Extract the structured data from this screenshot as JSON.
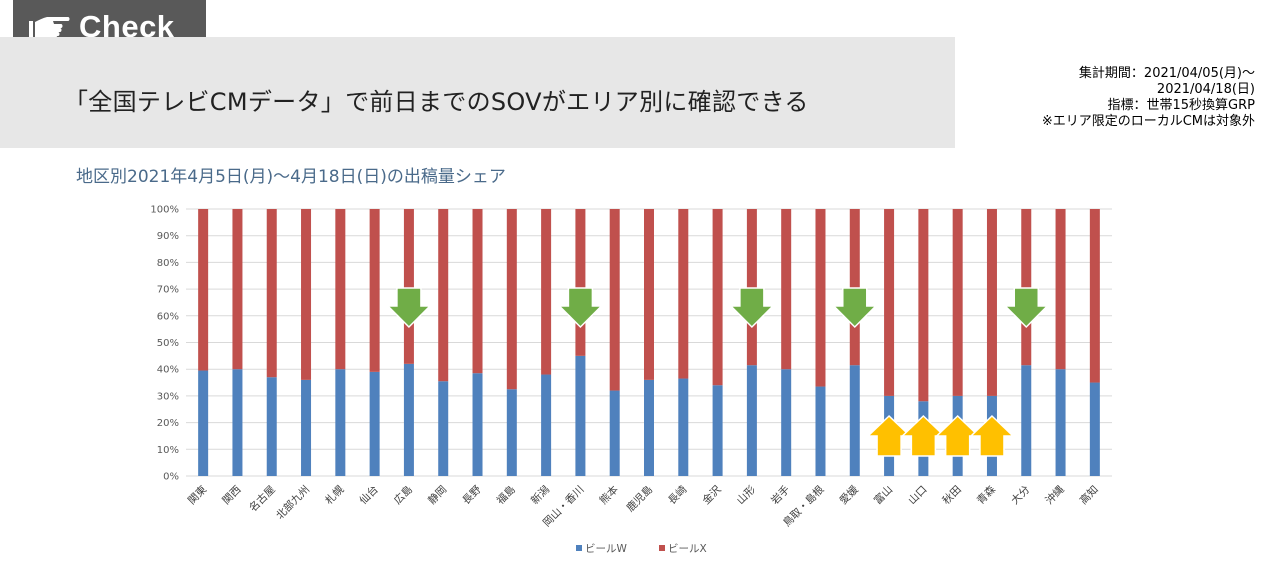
{
  "banner": {
    "label": "Check",
    "icon": "pointing-hand-icon"
  },
  "headline": "「全国テレビCMデータ」で前日までのSOVがエリア別に確認できる",
  "meta": [
    "集計期間：2021/04/05(月)～",
    "2021/04/18(日)",
    "指標：世帯15秒換算GRP",
    "※エリア限定のローカルCMは対象外"
  ],
  "colors": {
    "series_w": "#4f81bd",
    "series_x": "#c0504d",
    "down_arrow": "#70ad47",
    "up_arrow": "#ffc000",
    "grid": "#d9d9d9"
  },
  "chart_data": {
    "type": "bar",
    "stacked": true,
    "title": "地区別2021年4月5日(月)～4月18日(日)の出稿量シェア",
    "categories": [
      "関東",
      "関西",
      "名古屋",
      "北部九州",
      "札幌",
      "仙台",
      "広島",
      "静岡",
      "長野",
      "福島",
      "新潟",
      "岡山・香川",
      "熊本",
      "鹿児島",
      "長崎",
      "金沢",
      "山形",
      "岩手",
      "鳥取・島根",
      "愛媛",
      "富山",
      "山口",
      "秋田",
      "青森",
      "大分",
      "沖縄",
      "高知"
    ],
    "series": [
      {
        "name": "ビールW",
        "values": [
          39.5,
          40,
          37,
          36,
          40,
          39,
          42,
          35.5,
          38.5,
          32.5,
          38,
          45,
          32,
          36,
          36.5,
          34,
          41.5,
          40,
          33.5,
          41.5,
          30,
          28,
          30,
          30,
          41.5,
          40,
          35
        ]
      },
      {
        "name": "ビールX",
        "values": [
          60.5,
          60,
          63,
          64,
          60,
          61,
          58,
          64.5,
          61.5,
          67.5,
          62,
          55,
          68,
          64,
          63.5,
          66,
          58.5,
          60,
          66.5,
          58.5,
          70,
          72,
          70,
          70,
          58.5,
          60,
          65
        ]
      }
    ],
    "ylim": [
      0,
      100
    ],
    "yticks": [
      "0%",
      "10%",
      "20%",
      "30%",
      "40%",
      "50%",
      "60%",
      "70%",
      "80%",
      "90%",
      "100%"
    ],
    "legend": "bottom",
    "grid": true,
    "annotations": {
      "down_arrows": [
        "広島",
        "岡山・香川",
        "山形",
        "愛媛",
        "大分"
      ],
      "up_arrows": [
        "富山",
        "山口",
        "秋田",
        "青森"
      ]
    }
  }
}
